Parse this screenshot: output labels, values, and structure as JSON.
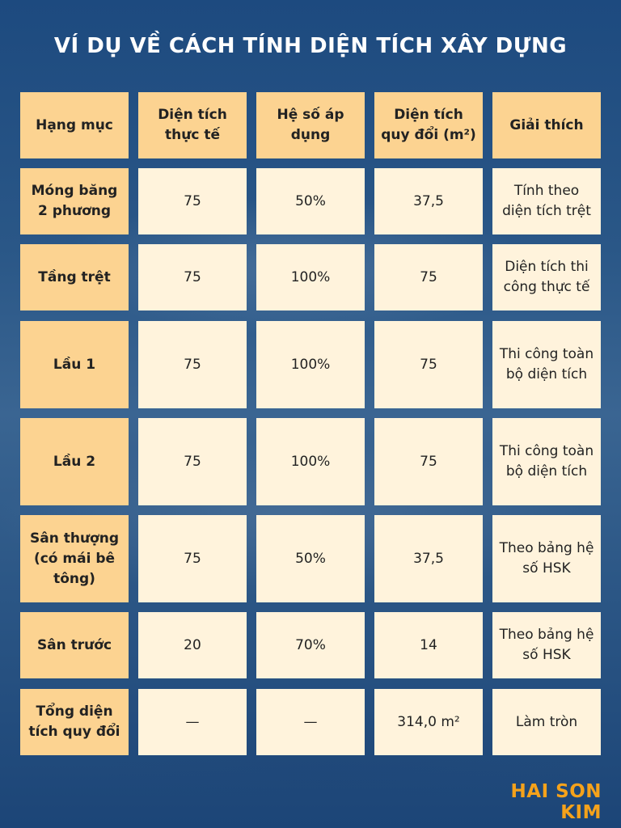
{
  "title": "VÍ DỤ VỀ CÁCH TÍNH DIỆN TÍCH XÂY DỰNG",
  "table": {
    "headers": [
      "Hạng mục",
      "Diện tích thực tế",
      "Hệ số áp dụng",
      "Diện tích quy đổi (m²)",
      "Giải thích"
    ],
    "rows": [
      [
        "Móng băng 2 phương",
        "75",
        "50%",
        "37,5",
        "Tính theo diện tích trệt"
      ],
      [
        "Tầng trệt",
        "75",
        "100%",
        "75",
        "Diện tích thi công thực tế"
      ],
      [
        "Lầu 1",
        "75",
        "100%",
        "75",
        "Thi công toàn bộ diện tích"
      ],
      [
        "Lầu 2",
        "75",
        "100%",
        "75",
        "Thi công toàn bộ diện tích"
      ],
      [
        "Sân thượng (có mái bê tông)",
        "75",
        "50%",
        "37,5",
        "Theo bảng hệ số HSK"
      ],
      [
        "Sân trước",
        "20",
        "70%",
        "14",
        "Theo bảng hệ số HSK"
      ],
      [
        "Tổng diện tích quy đổi",
        "—",
        "—",
        "314,0 m²",
        "Làm tròn"
      ]
    ]
  },
  "brand": "HAI SON KIM",
  "colors": {
    "header_fill": "#fcd391",
    "body_fill": "#fff3dc",
    "brand": "#f5a21b",
    "background": "#2a5787"
  }
}
